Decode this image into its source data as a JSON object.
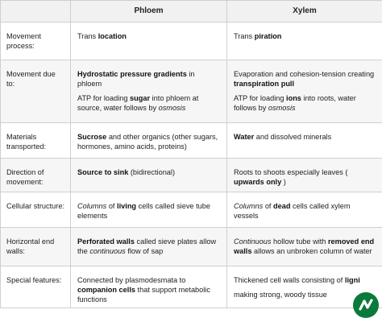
{
  "header": {
    "corner": "",
    "phloem": "Phloem",
    "xylem": "Xylem"
  },
  "rows": [
    {
      "label": "Movement process:",
      "phloem": [
        [
          {
            "t": "Trans "
          },
          {
            "t": "location",
            "b": true
          }
        ]
      ],
      "xylem": [
        [
          {
            "t": "Trans "
          },
          {
            "t": "piration",
            "b": true
          }
        ]
      ]
    },
    {
      "label": "Movement due to:",
      "phloem": [
        [
          {
            "t": "Hydrostatic pressure gradients",
            "b": true
          },
          {
            "t": " in phloem"
          }
        ],
        [
          {
            "t": "ATP for loading "
          },
          {
            "t": "sugar",
            "b": true
          },
          {
            "t": " into phloem at source, water follows by "
          },
          {
            "t": "osmosis",
            "i": true
          }
        ]
      ],
      "xylem": [
        [
          {
            "t": "Evaporation and cohesion-tension creating "
          },
          {
            "t": "transpiration pull",
            "b": true
          }
        ],
        [
          {
            "t": "ATP for loading "
          },
          {
            "t": "ions",
            "b": true
          },
          {
            "t": " into roots, water follows by "
          },
          {
            "t": "osmosis",
            "i": true
          }
        ]
      ]
    },
    {
      "label": "Materials transported:",
      "phloem": [
        [
          {
            "t": "Sucrose",
            "b": true
          },
          {
            "t": " and other organics (other sugars, hormones, amino acids, proteins)"
          }
        ]
      ],
      "xylem": [
        [
          {
            "t": "Water",
            "b": true
          },
          {
            "t": " and dissolved minerals"
          }
        ]
      ]
    },
    {
      "label": "Direction of movement:",
      "phloem": [
        [
          {
            "t": "Source to sink",
            "b": true
          },
          {
            "t": " (bidirectional)"
          }
        ]
      ],
      "xylem": [
        [
          {
            "t": "Roots to shoots especially leaves ( "
          },
          {
            "t": "upwards only",
            "b": true
          },
          {
            "t": " )"
          }
        ]
      ]
    },
    {
      "label": "Cellular structure:",
      "phloem": [
        [
          {
            "t": "Columns",
            "i": true
          },
          {
            "t": " of "
          },
          {
            "t": "living",
            "b": true
          },
          {
            "t": " cells called sieve tube elements"
          }
        ]
      ],
      "xylem": [
        [
          {
            "t": "Columns",
            "i": true
          },
          {
            "t": " of "
          },
          {
            "t": "dead",
            "b": true
          },
          {
            "t": " cells called xylem vessels"
          }
        ]
      ]
    },
    {
      "label": "Horizontal end walls:",
      "phloem": [
        [
          {
            "t": "Perforated walls",
            "b": true
          },
          {
            "t": " called sieve plates allow the "
          },
          {
            "t": "continuous",
            "i": true
          },
          {
            "t": " flow of sap"
          }
        ]
      ],
      "xylem": [
        [
          {
            "t": "Continuous",
            "i": true
          },
          {
            "t": " hollow tube with "
          },
          {
            "t": "removed end walls",
            "b": true
          },
          {
            "t": " allows an unbroken column of water"
          }
        ]
      ]
    },
    {
      "label": "Special features:",
      "phloem": [
        [
          {
            "t": "Connected by plasmodesmata to "
          },
          {
            "t": "companion cells",
            "b": true
          },
          {
            "t": " that support metabolic functions"
          }
        ]
      ],
      "xylem": [
        [
          {
            "t": "Thickened cell walls consisting of "
          },
          {
            "t": "ligni",
            "b": true
          }
        ],
        [
          {
            "t": "making strong, woody tissue"
          }
        ]
      ]
    }
  ],
  "logo": {
    "icon": "brand-logo-icon",
    "color": "#0a7a3a",
    "mark_color": "#ffffff"
  }
}
